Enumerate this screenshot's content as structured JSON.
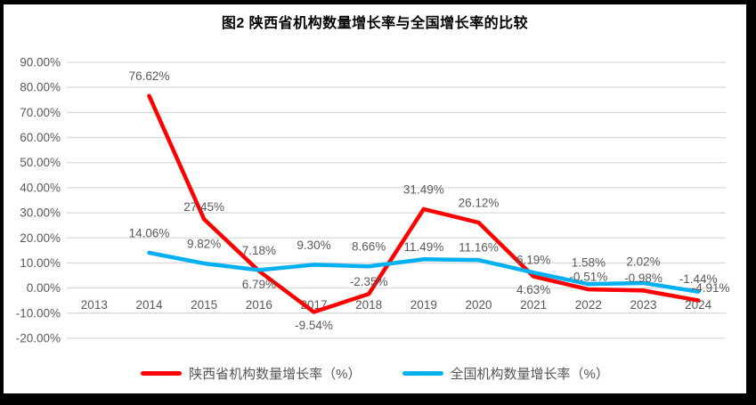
{
  "title": "图2 陕西省机构数量增长率与全国增长率的比较",
  "colors": {
    "shaanxi_line": "#FF0000",
    "national_line": "#00B0F0",
    "gridline": "#D9D9D9",
    "axis_text": "#595959",
    "data_label_text": "#595959",
    "title_text": "#000000",
    "frame": "#000000",
    "background": "#FFFFFF"
  },
  "legend": {
    "items": [
      {
        "label": "陕西省机构数量增长率（%）",
        "series": "shaanxi"
      },
      {
        "label": "全国机构数量增长率（%）",
        "series": "national"
      }
    ]
  },
  "chart_data": {
    "type": "line",
    "title": "图2 陕西省机构数量增长率与全国增长率的比较",
    "categories": [
      "2013",
      "2014",
      "2015",
      "2016",
      "2017",
      "2018",
      "2019",
      "2020",
      "2021",
      "2022",
      "2023",
      "2024"
    ],
    "series": [
      {
        "name": "陕西省机构数量增长率（%）",
        "color": "#FF0000",
        "values": [
          null,
          76.62,
          27.45,
          6.79,
          -9.54,
          -2.35,
          31.49,
          26.12,
          4.63,
          -0.51,
          -0.98,
          -4.91
        ],
        "labels": [
          "",
          "76.62%",
          "27.45%",
          "6.79%",
          "-9.54%",
          "-2.35%",
          "31.49%",
          "26.12%",
          "4.63%",
          "-0.51%",
          "-0.98%",
          "-4.91%"
        ],
        "label_side": [
          "",
          "above",
          "above",
          "below",
          "below",
          "above",
          "above",
          "above",
          "below",
          "above",
          "above",
          "above"
        ],
        "label_dx": [
          0,
          0,
          0,
          0,
          0,
          0,
          0,
          0,
          0,
          0,
          0,
          14
        ],
        "label_dy": [
          0,
          -8,
          0,
          0,
          0,
          0,
          -8,
          -8,
          0,
          0,
          0,
          0
        ]
      },
      {
        "name": "全国机构数量增长率（%）",
        "color": "#00B0F0",
        "values": [
          null,
          14.06,
          9.82,
          7.18,
          9.3,
          8.66,
          11.49,
          11.16,
          6.19,
          1.58,
          2.02,
          -1.44
        ],
        "labels": [
          "",
          "14.06%",
          "9.82%",
          "7.18%",
          "9.30%",
          "8.66%",
          "11.49%",
          "11.16%",
          "6.19%",
          "1.58%",
          "2.02%",
          "-1.44%"
        ],
        "label_side": [
          "",
          "above",
          "above",
          "above",
          "above",
          "above",
          "above",
          "above",
          "above",
          "above",
          "above",
          "above"
        ],
        "label_dx": [
          0,
          0,
          0,
          0,
          0,
          0,
          0,
          0,
          0,
          0,
          0,
          0
        ],
        "label_dy": [
          0,
          -8,
          -8,
          -8,
          -8,
          -8,
          0,
          0,
          0,
          -10,
          -10,
          0
        ]
      }
    ],
    "y_ticks": [
      {
        "v": 90,
        "label": "90.00%"
      },
      {
        "v": 80,
        "label": "80.00%"
      },
      {
        "v": 70,
        "label": "70.00%"
      },
      {
        "v": 60,
        "label": "60.00%"
      },
      {
        "v": 50,
        "label": "50.00%"
      },
      {
        "v": 40,
        "label": "40.00%"
      },
      {
        "v": 30,
        "label": "30.00%"
      },
      {
        "v": 20,
        "label": "20.00%"
      },
      {
        "v": 10,
        "label": "10.00%"
      },
      {
        "v": 0,
        "label": "0.00%"
      },
      {
        "v": -10,
        "label": "-10.00%"
      },
      {
        "v": -20,
        "label": "-20.00%"
      }
    ],
    "ylim": [
      -20,
      90
    ],
    "grid": true,
    "legend_position": "bottom"
  }
}
